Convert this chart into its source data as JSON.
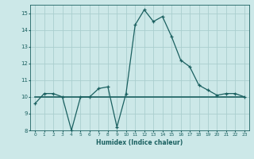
{
  "title": "",
  "xlabel": "Humidex (Indice chaleur)",
  "ylabel": "",
  "background_color": "#cce8e8",
  "grid_color": "#aacece",
  "line_color": "#1a6060",
  "xlim": [
    -0.5,
    23.5
  ],
  "ylim": [
    8,
    15.5
  ],
  "yticks": [
    8,
    9,
    10,
    11,
    12,
    13,
    14,
    15
  ],
  "xticks": [
    0,
    1,
    2,
    3,
    4,
    5,
    6,
    7,
    8,
    9,
    10,
    11,
    12,
    13,
    14,
    15,
    16,
    17,
    18,
    19,
    20,
    21,
    22,
    23
  ],
  "line1_x": [
    0,
    1,
    2,
    3,
    4,
    5,
    6,
    7,
    8,
    9,
    10,
    11,
    12,
    13,
    14,
    15,
    16,
    17,
    18,
    19,
    20,
    21,
    22,
    23
  ],
  "line1_y": [
    9.6,
    10.2,
    10.2,
    10.0,
    8.0,
    10.0,
    10.0,
    10.5,
    10.6,
    8.2,
    10.2,
    14.3,
    15.2,
    14.5,
    14.8,
    13.6,
    12.2,
    11.8,
    10.7,
    10.4,
    10.1,
    10.2,
    10.2,
    10.0
  ],
  "line2_x": [
    0,
    1,
    2,
    3,
    4,
    5,
    6,
    7,
    8,
    9,
    10,
    11,
    12,
    13,
    14,
    15,
    16,
    17,
    18,
    19,
    20,
    21,
    22,
    23
  ],
  "line2_y": [
    10.0,
    10.0,
    10.0,
    10.0,
    10.0,
    10.0,
    10.0,
    10.0,
    10.0,
    10.0,
    10.0,
    10.0,
    10.0,
    10.0,
    10.0,
    10.0,
    10.0,
    10.0,
    10.0,
    10.0,
    10.0,
    10.0,
    10.0,
    10.0
  ]
}
